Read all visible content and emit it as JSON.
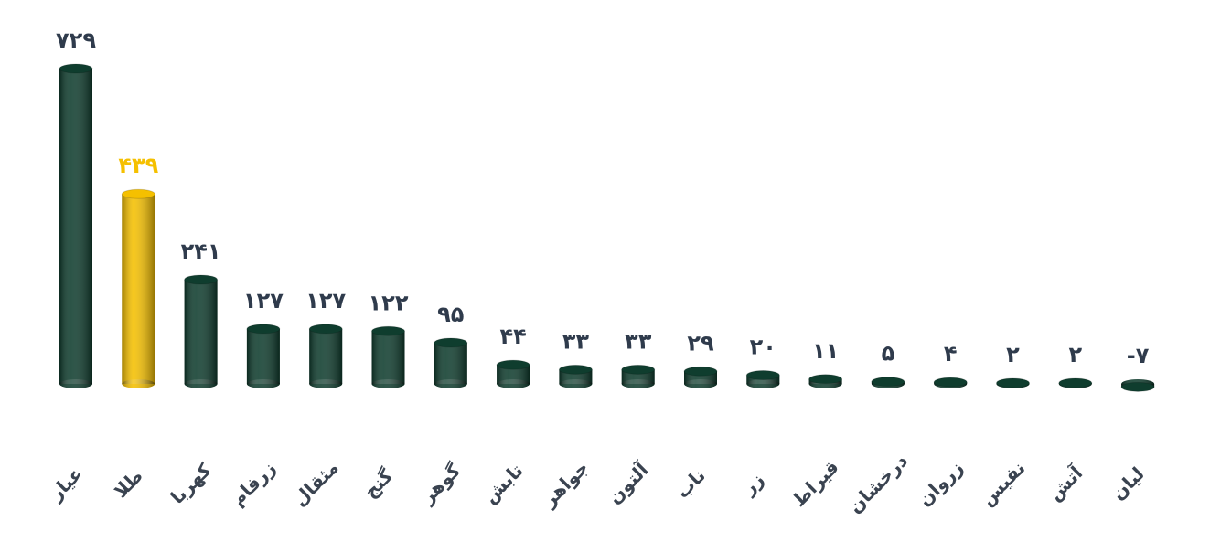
{
  "chart_data": {
    "type": "bar",
    "categories": [
      "عیار",
      "طلا",
      "کهربا",
      "زرفام",
      "مثقال",
      "گنج",
      "گوهر",
      "تابش",
      "جواهر",
      "آلتون",
      "ناب",
      "زر",
      "قیراط",
      "درخشان",
      "زروان",
      "نفیس",
      "آتش",
      "لیان"
    ],
    "values": [
      729,
      439,
      241,
      127,
      127,
      122,
      95,
      44,
      33,
      33,
      29,
      20,
      11,
      5,
      4,
      2,
      2,
      -7
    ],
    "value_labels": [
      "۷۲۹",
      "۴۳۹",
      "۲۴۱",
      "۱۲۷",
      "۱۲۷",
      "۱۲۲",
      "۹۵",
      "۴۴",
      "۳۳",
      "۳۳",
      "۲۹",
      "۲۰",
      "۱۱",
      "۵",
      "۴",
      "۲",
      "۲",
      "-۷"
    ],
    "colors": [
      "#0f3d2e",
      "#f5c000",
      "#0f3d2e",
      "#0f3d2e",
      "#0f3d2e",
      "#0f3d2e",
      "#0f3d2e",
      "#0f3d2e",
      "#0f3d2e",
      "#0f3d2e",
      "#0f3d2e",
      "#0f3d2e",
      "#0f3d2e",
      "#0f3d2e",
      "#0f3d2e",
      "#0f3d2e",
      "#0f3d2e",
      "#0f3d2e"
    ]
  }
}
